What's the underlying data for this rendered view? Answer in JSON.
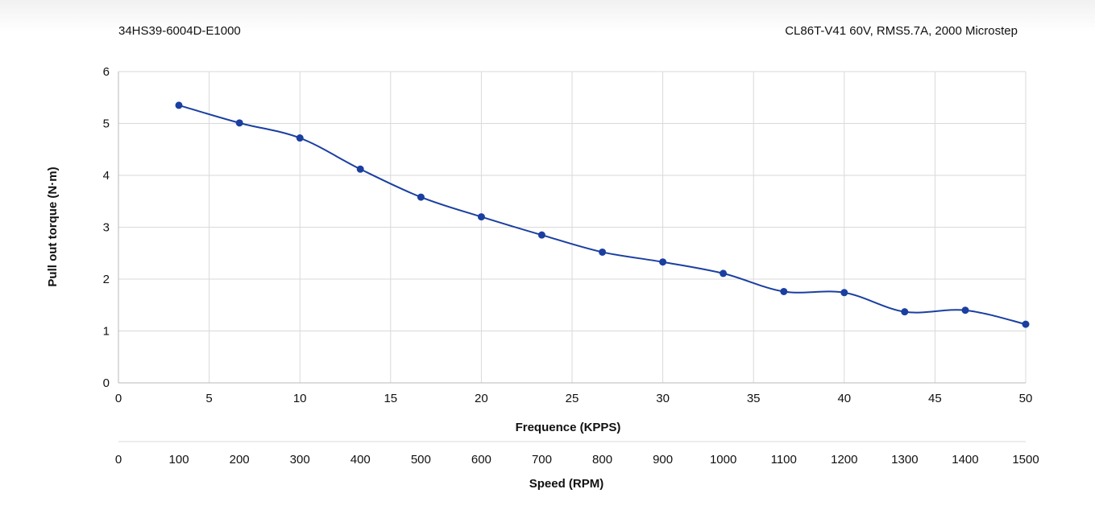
{
  "header": {
    "model": "34HS39-6004D-E1000",
    "driver": "CL86T-V41  60V,  RMS5.7A,  2000 Microstep"
  },
  "chart_data": {
    "type": "line",
    "title": "",
    "xlabel": "Frequence (KPPS)",
    "ylabel": "Pull out torque (N·m)",
    "x2label": "Speed (RPM)",
    "xlim": [
      0,
      50
    ],
    "ylim": [
      0,
      6
    ],
    "grid": true,
    "x_ticks": [
      0,
      5,
      10,
      15,
      20,
      25,
      30,
      35,
      40,
      45,
      50
    ],
    "y_ticks": [
      0,
      1,
      2,
      3,
      4,
      5,
      6
    ],
    "x2_ticks": [
      0,
      100,
      200,
      300,
      400,
      500,
      600,
      700,
      800,
      900,
      1000,
      1100,
      1200,
      1300,
      1400,
      1500
    ],
    "series": [
      {
        "name": "Pull out torque",
        "color": "#1a3fa0",
        "x": [
          3.33,
          6.67,
          10,
          13.33,
          16.67,
          20,
          23.33,
          26.67,
          30,
          33.33,
          36.67,
          40,
          43.33,
          46.67,
          50
        ],
        "y": [
          5.35,
          5.01,
          4.72,
          4.12,
          3.58,
          3.2,
          2.85,
          2.52,
          2.33,
          2.11,
          1.76,
          1.74,
          1.37,
          1.4,
          1.13
        ]
      }
    ]
  }
}
